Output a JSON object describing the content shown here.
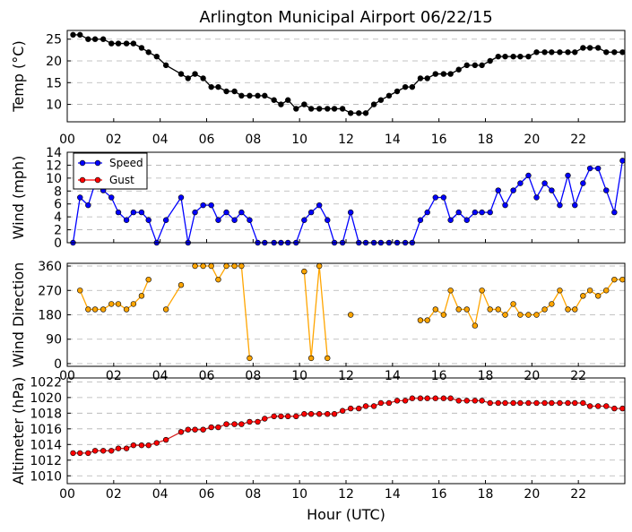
{
  "title": "Arlington Municipal Airport 06/22/15",
  "xlabel": "Hour (UTC)",
  "colors": {
    "speed": "#0000ff",
    "gust": "#ff0000",
    "direction": "#ffa500",
    "temp": "#000000",
    "altimeter": "#ff0000",
    "line_altimeter": "#d62020"
  },
  "chart_data": [
    {
      "id": "temp",
      "type": "line",
      "ylabel": "Temp (°C)",
      "ylim": [
        6,
        27
      ],
      "yticks": [
        10,
        15,
        20,
        25
      ],
      "xlim": [
        0,
        24
      ],
      "xticks": [
        0,
        2,
        4,
        6,
        8,
        10,
        12,
        14,
        16,
        18,
        20,
        22
      ],
      "xticklabels": [
        "00",
        "02",
        "04",
        "06",
        "08",
        "10",
        "12",
        "14",
        "16",
        "18",
        "20",
        "22"
      ],
      "series": [
        {
          "name": "Temp",
          "x": [
            0.25,
            0.55,
            0.9,
            1.2,
            1.55,
            1.9,
            2.2,
            2.55,
            2.85,
            3.2,
            3.5,
            3.85,
            4.25,
            4.9,
            5.2,
            5.5,
            5.85,
            6.2,
            6.5,
            6.85,
            7.2,
            7.5,
            7.85,
            8.2,
            8.5,
            8.9,
            9.2,
            9.5,
            9.85,
            10.2,
            10.5,
            10.85,
            11.2,
            11.5,
            11.85,
            12.2,
            12.55,
            12.85,
            13.2,
            13.5,
            13.85,
            14.2,
            14.55,
            14.85,
            15.2,
            15.5,
            15.85,
            16.2,
            16.5,
            16.85,
            17.2,
            17.55,
            17.85,
            18.2,
            18.55,
            18.85,
            19.2,
            19.5,
            19.85,
            20.2,
            20.55,
            20.85,
            21.2,
            21.55,
            21.85,
            22.2,
            22.5,
            22.85,
            23.2,
            23.55,
            23.9
          ],
          "values": [
            26,
            26,
            25,
            25,
            25,
            24,
            24,
            24,
            24,
            23,
            22,
            21,
            19,
            17,
            16,
            17,
            16,
            14,
            14,
            13,
            13,
            12,
            12,
            12,
            12,
            11,
            10,
            11,
            9,
            10,
            9,
            9,
            9,
            9,
            9,
            8,
            8,
            8,
            10,
            11,
            12,
            13,
            14,
            14,
            16,
            16,
            17,
            17,
            17,
            18,
            19,
            19,
            19,
            20,
            21,
            21,
            21,
            21,
            21,
            22,
            22,
            22,
            22,
            22,
            22,
            23,
            23,
            23,
            22,
            22,
            22
          ]
        }
      ]
    },
    {
      "id": "wind",
      "type": "line",
      "ylabel": "Wind (mph)",
      "ylim": [
        0,
        14
      ],
      "yticks": [
        0,
        2,
        4,
        6,
        8,
        10,
        12,
        14
      ],
      "xlim": [
        0,
        24
      ],
      "xticks": [
        0,
        2,
        4,
        6,
        8,
        10,
        12,
        14,
        16,
        18,
        20,
        22
      ],
      "xticklabels": [
        "00",
        "02",
        "04",
        "06",
        "08",
        "10",
        "12",
        "14",
        "16",
        "18",
        "20",
        "22"
      ],
      "legend": {
        "location": "upper-left",
        "entries": [
          "Speed",
          "Gust"
        ]
      },
      "series": [
        {
          "name": "Speed",
          "x": [
            0.25,
            0.55,
            0.9,
            1.2,
            1.55,
            1.9,
            2.2,
            2.55,
            2.85,
            3.2,
            3.5,
            3.85,
            4.25,
            4.9,
            5.2,
            5.5,
            5.85,
            6.2,
            6.5,
            6.85,
            7.2,
            7.5,
            7.85,
            8.2,
            8.5,
            8.9,
            9.2,
            9.5,
            9.85,
            10.2,
            10.5,
            10.85,
            11.2,
            11.5,
            11.85,
            12.2,
            12.55,
            12.85,
            13.2,
            13.5,
            13.85,
            14.2,
            14.55,
            14.85,
            15.2,
            15.5,
            15.85,
            16.2,
            16.5,
            16.85,
            17.2,
            17.55,
            17.85,
            18.2,
            18.55,
            18.85,
            19.2,
            19.5,
            19.85,
            20.2,
            20.55,
            20.85,
            21.2,
            21.55,
            21.85,
            22.2,
            22.5,
            22.85,
            23.2,
            23.55,
            23.9
          ],
          "values": [
            0,
            7,
            5.8,
            9.2,
            8.1,
            7,
            4.7,
            3.5,
            4.7,
            4.7,
            3.5,
            0,
            3.5,
            7,
            0,
            4.7,
            5.8,
            5.8,
            3.5,
            4.7,
            3.5,
            4.7,
            3.5,
            0,
            0,
            0,
            0,
            0,
            0,
            3.5,
            4.7,
            5.8,
            3.5,
            0,
            0,
            4.7,
            0,
            0,
            0,
            0,
            0,
            0,
            0,
            0,
            3.5,
            4.7,
            7,
            7,
            3.5,
            4.7,
            3.5,
            4.7,
            4.7,
            4.7,
            8.1,
            5.8,
            8.1,
            9.2,
            10.4,
            7,
            9.2,
            8.1,
            5.8,
            10.4,
            5.8,
            9.2,
            11.5,
            11.5,
            8.1,
            4.7,
            12.7
          ]
        },
        {
          "name": "Gust",
          "x": [],
          "values": []
        }
      ]
    },
    {
      "id": "direction",
      "type": "line",
      "ylabel": "Wind Direction",
      "ylim": [
        -10,
        370
      ],
      "yticks": [
        0,
        90,
        180,
        270,
        360
      ],
      "xlim": [
        0,
        24
      ],
      "xticks": [
        0,
        2,
        4,
        6,
        8,
        10,
        12,
        14,
        16,
        18,
        20,
        22
      ],
      "xticklabels": [
        "00",
        "02",
        "04",
        "06",
        "08",
        "10",
        "12",
        "14",
        "16",
        "18",
        "20",
        "22"
      ],
      "series": [
        {
          "name": "Direction",
          "segments": [
            {
              "x": [
                0.55,
                0.9,
                1.2,
                1.55,
                1.9,
                2.2,
                2.55,
                2.85,
                3.2,
                3.5
              ],
              "values": [
                270,
                200,
                200,
                200,
                220,
                220,
                200,
                220,
                250,
                310
              ]
            },
            {
              "x": [
                4.25,
                4.9
              ],
              "values": [
                200,
                290
              ]
            },
            {
              "x": [
                5.5,
                5.85,
                6.2,
                6.5,
                6.85,
                7.2,
                7.5,
                7.85
              ],
              "values": [
                360,
                360,
                360,
                310,
                360,
                360,
                360,
                20
              ]
            },
            {
              "x": [
                10.2,
                10.5,
                10.85,
                11.2
              ],
              "values": [
                340,
                20,
                360,
                20
              ]
            },
            {
              "x": [
                12.2
              ],
              "values": [
                180
              ]
            },
            {
              "x": [
                15.2,
                15.5,
                15.85,
                16.2,
                16.5,
                16.85,
                17.2,
                17.55,
                17.85,
                18.2,
                18.55,
                18.85,
                19.2,
                19.5,
                19.85,
                20.2,
                20.55,
                20.85,
                21.2,
                21.55,
                21.85,
                22.2,
                22.5,
                22.85,
                23.2,
                23.55,
                23.9
              ],
              "values": [
                160,
                160,
                200,
                180,
                270,
                200,
                200,
                140,
                270,
                200,
                200,
                180,
                220,
                180,
                180,
                180,
                200,
                220,
                270,
                200,
                200,
                250,
                270,
                250,
                270,
                310,
                310
              ]
            }
          ]
        }
      ]
    },
    {
      "id": "altimeter",
      "type": "line",
      "ylabel": "Altimeter (hPa)",
      "ylim": [
        1009,
        1022.5
      ],
      "yticks": [
        1010,
        1012,
        1014,
        1016,
        1018,
        1020,
        1022
      ],
      "xlim": [
        0,
        24
      ],
      "xticks": [
        0,
        2,
        4,
        6,
        8,
        10,
        12,
        14,
        16,
        18,
        20,
        22
      ],
      "xticklabels": [
        "00",
        "02",
        "04",
        "06",
        "08",
        "10",
        "12",
        "14",
        "16",
        "18",
        "20",
        "22"
      ],
      "series": [
        {
          "name": "Altimeter",
          "x": [
            0.25,
            0.55,
            0.9,
            1.2,
            1.55,
            1.9,
            2.2,
            2.55,
            2.85,
            3.2,
            3.5,
            3.85,
            4.25,
            4.9,
            5.2,
            5.5,
            5.85,
            6.2,
            6.5,
            6.85,
            7.2,
            7.5,
            7.85,
            8.2,
            8.5,
            8.9,
            9.2,
            9.5,
            9.85,
            10.2,
            10.5,
            10.85,
            11.2,
            11.5,
            11.85,
            12.2,
            12.55,
            12.85,
            13.2,
            13.5,
            13.85,
            14.2,
            14.55,
            14.85,
            15.2,
            15.5,
            15.85,
            16.2,
            16.5,
            16.85,
            17.2,
            17.55,
            17.85,
            18.2,
            18.55,
            18.85,
            19.2,
            19.5,
            19.85,
            20.2,
            20.55,
            20.85,
            21.2,
            21.55,
            21.85,
            22.2,
            22.5,
            22.85,
            23.2,
            23.55,
            23.9
          ],
          "values": [
            1012.9,
            1012.9,
            1012.9,
            1013.2,
            1013.2,
            1013.2,
            1013.5,
            1013.5,
            1013.9,
            1013.9,
            1013.9,
            1014.2,
            1014.6,
            1015.6,
            1015.9,
            1015.9,
            1015.9,
            1016.2,
            1016.2,
            1016.6,
            1016.6,
            1016.6,
            1016.9,
            1016.9,
            1017.3,
            1017.6,
            1017.6,
            1017.6,
            1017.6,
            1017.9,
            1017.9,
            1017.9,
            1017.9,
            1017.9,
            1018.3,
            1018.6,
            1018.6,
            1018.9,
            1018.9,
            1019.3,
            1019.3,
            1019.6,
            1019.6,
            1019.9,
            1019.9,
            1019.9,
            1019.9,
            1019.9,
            1019.9,
            1019.6,
            1019.6,
            1019.6,
            1019.6,
            1019.3,
            1019.3,
            1019.3,
            1019.3,
            1019.3,
            1019.3,
            1019.3,
            1019.3,
            1019.3,
            1019.3,
            1019.3,
            1019.3,
            1019.3,
            1018.9,
            1018.9,
            1018.9,
            1018.6,
            1018.6
          ]
        }
      ]
    }
  ]
}
